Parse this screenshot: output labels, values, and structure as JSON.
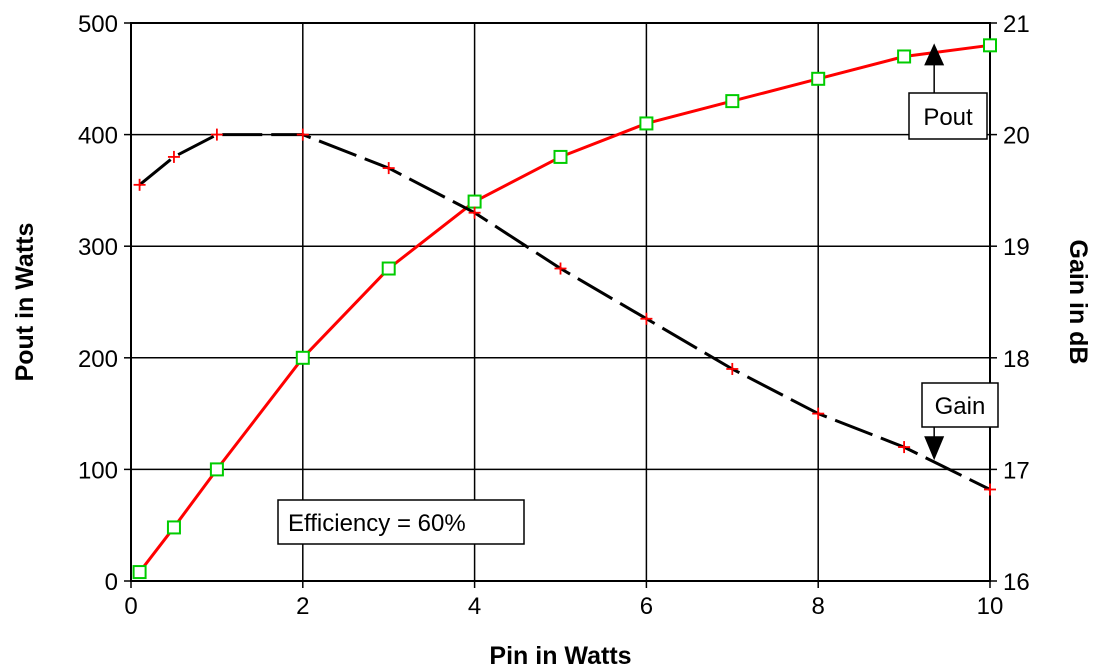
{
  "chart_data": {
    "type": "line",
    "title": "",
    "xlabel": "Pin in Watts",
    "ylabel": "Pout in Watts",
    "y2label": "Gain in dB",
    "xlim": [
      0,
      10
    ],
    "ylim": [
      0,
      500
    ],
    "y2lim": [
      16,
      21
    ],
    "xticks": [
      "0",
      "2",
      "4",
      "6",
      "8",
      "10"
    ],
    "yticks": [
      "0",
      "100",
      "200",
      "300",
      "400",
      "500"
    ],
    "y2ticks": [
      "16",
      "17",
      "18",
      "19",
      "20",
      "21"
    ],
    "grid": true,
    "series": [
      {
        "name": "Pout",
        "axis": "left",
        "color": "#ff0000",
        "line_style": "solid",
        "marker": "square",
        "marker_color": "#00cc00",
        "x": [
          0.1,
          0.5,
          1,
          2,
          3,
          4,
          5,
          6,
          7,
          8,
          9,
          10
        ],
        "y": [
          8,
          48,
          100,
          200,
          280,
          340,
          380,
          410,
          430,
          450,
          470,
          480
        ]
      },
      {
        "name": "Gain",
        "axis": "right",
        "color": "#000000",
        "line_style": "dashed",
        "marker": "plus",
        "marker_color": "#ff0000",
        "x": [
          0.1,
          0.5,
          1,
          2,
          3,
          4,
          5,
          6,
          7,
          8,
          9,
          10
        ],
        "y": [
          19.55,
          19.8,
          20.0,
          20.0,
          19.7,
          19.3,
          18.8,
          18.35,
          17.9,
          17.5,
          17.2,
          16.82
        ]
      }
    ],
    "annotations": [
      {
        "text": "Pout",
        "anchor_series": "Pout",
        "anchor_x": 9.35,
        "anchor_y": 480,
        "arrow": "up"
      },
      {
        "text": "Gain",
        "anchor_series": "Gain",
        "anchor_x": 9.35,
        "anchor_y": 17.1,
        "arrow": "down"
      },
      {
        "text": "Efficiency = 60%"
      }
    ]
  }
}
